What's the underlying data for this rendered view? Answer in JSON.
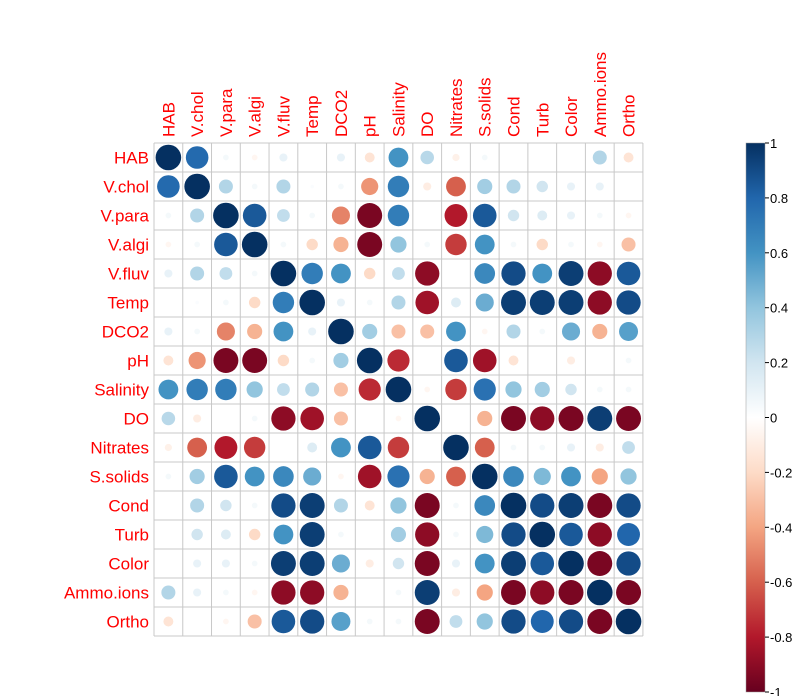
{
  "chart_data": {
    "type": "heatmap",
    "variables": [
      "HAB",
      "V.chol",
      "V.para",
      "V.algi",
      "V.fluv",
      "Temp",
      "DCO2",
      "pH",
      "Salinity",
      "DO",
      "Nitrates",
      "S.solids",
      "Cond",
      "Turb",
      "Color",
      "Ammo.ions",
      "Ortho"
    ],
    "matrix": [
      [
        1,
        0.78,
        0.05,
        -0.05,
        0.1,
        0,
        0.1,
        -0.15,
        0.6,
        0.28,
        -0.08,
        0.05,
        0,
        0,
        0,
        0.3,
        -0.15
      ],
      [
        0.78,
        1,
        0.3,
        0.05,
        0.3,
        0.02,
        0.05,
        -0.45,
        0.7,
        -0.1,
        -0.6,
        0.35,
        0.3,
        0.2,
        0.1,
        0.1,
        0
      ],
      [
        0.05,
        0.3,
        1,
        0.85,
        0.25,
        0.05,
        -0.5,
        -0.95,
        0.7,
        0,
        -0.8,
        0.85,
        0.2,
        0.15,
        0.1,
        0.05,
        -0.05
      ],
      [
        -0.05,
        0.05,
        0.85,
        1,
        0.05,
        -0.2,
        -0.35,
        -0.95,
        0.4,
        0.05,
        -0.7,
        0.6,
        0.05,
        -0.2,
        0.05,
        -0.05,
        -0.3
      ],
      [
        0.1,
        0.3,
        0.25,
        0.05,
        1,
        0.7,
        0.6,
        -0.2,
        0.25,
        -0.9,
        0,
        0.65,
        0.9,
        0.6,
        0.95,
        -0.9,
        0.85
      ],
      [
        0,
        0.02,
        0.05,
        -0.2,
        0.7,
        1,
        0.1,
        0.05,
        0.3,
        -0.85,
        0.15,
        0.5,
        0.95,
        0.95,
        0.95,
        -0.9,
        0.9
      ],
      [
        0.1,
        0.05,
        -0.5,
        -0.35,
        0.6,
        0.1,
        1,
        0.35,
        -0.3,
        -0.3,
        0.6,
        -0.05,
        0.3,
        0.05,
        0.5,
        -0.35,
        0.55
      ],
      [
        -0.15,
        -0.45,
        -0.95,
        -0.95,
        -0.2,
        0.05,
        0.35,
        1,
        -0.75,
        0,
        0.85,
        -0.85,
        -0.15,
        0,
        -0.1,
        0,
        0.05
      ],
      [
        0.6,
        0.7,
        0.7,
        0.4,
        0.25,
        0.3,
        -0.3,
        -0.75,
        1,
        -0.05,
        -0.7,
        0.75,
        0.4,
        0.35,
        0.2,
        0.05,
        0.05
      ],
      [
        0.28,
        -0.1,
        0,
        0.05,
        -0.9,
        -0.85,
        -0.3,
        0,
        -0.05,
        1,
        0,
        -0.35,
        -0.95,
        -0.9,
        -0.95,
        0.95,
        -0.95
      ],
      [
        -0.08,
        -0.6,
        -0.8,
        -0.7,
        0,
        0.15,
        0.6,
        0.85,
        -0.7,
        0,
        1,
        -0.6,
        0.05,
        0.05,
        0.1,
        -0.1,
        0.25
      ],
      [
        0.05,
        0.35,
        0.85,
        0.6,
        0.65,
        0.5,
        -0.05,
        -0.85,
        0.75,
        -0.35,
        -0.6,
        1,
        0.65,
        0.45,
        0.6,
        -0.4,
        0.4
      ],
      [
        0,
        0.3,
        0.2,
        0.05,
        0.9,
        0.95,
        0.3,
        -0.15,
        0.4,
        -0.95,
        0.05,
        0.65,
        1,
        0.9,
        0.95,
        -0.95,
        0.9
      ],
      [
        0,
        0.2,
        0.15,
        -0.2,
        0.6,
        0.95,
        0.05,
        0,
        0.35,
        -0.9,
        0.05,
        0.45,
        0.9,
        1,
        0.85,
        -0.9,
        0.8
      ],
      [
        0,
        0.1,
        0.1,
        0.05,
        0.95,
        0.95,
        0.5,
        -0.1,
        0.2,
        -0.95,
        0.1,
        0.6,
        0.95,
        0.85,
        1,
        -0.95,
        0.9
      ],
      [
        0.3,
        0.1,
        0.05,
        -0.05,
        -0.9,
        -0.9,
        -0.35,
        0,
        0.05,
        0.95,
        -0.1,
        -0.4,
        -0.95,
        -0.9,
        -0.95,
        1,
        -0.95
      ],
      [
        -0.15,
        0,
        -0.05,
        -0.3,
        0.85,
        0.9,
        0.55,
        0.05,
        0.05,
        -0.95,
        0.25,
        0.4,
        0.9,
        0.8,
        0.9,
        -0.95,
        1
      ]
    ],
    "color_scale": {
      "range": [
        -1,
        1
      ],
      "ticks": [
        "1",
        "0.8",
        "0.6",
        "0.4",
        "0.2",
        "0",
        "-0.2",
        "-0.4",
        "-0.6",
        "-0.8",
        "-1"
      ],
      "colors": [
        "#67001f",
        "#b2182b",
        "#d6604d",
        "#f4a582",
        "#fddbc7",
        "#ffffff",
        "#d1e5f0",
        "#92c5de",
        "#4393c3",
        "#2166ac",
        "#053061"
      ]
    },
    "label_color": "#ff0000",
    "grid": true,
    "legend_position": "right"
  }
}
